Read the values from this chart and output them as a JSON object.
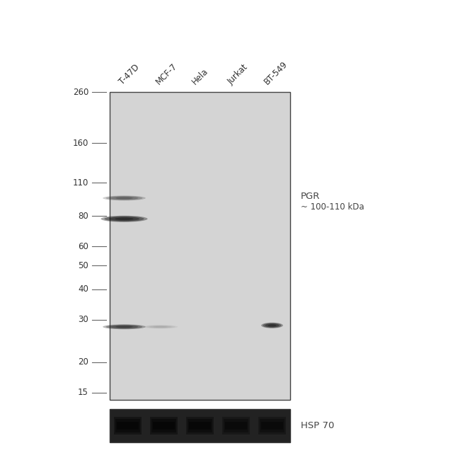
{
  "bg_color": "#ffffff",
  "gel_bg": "#d4d4d4",
  "fig_width": 6.5,
  "fig_height": 6.5,
  "lane_labels": [
    "T-47D",
    "MCF-7",
    "Hela",
    "Jurkat",
    "BT-549"
  ],
  "mw_markers": [
    260,
    160,
    110,
    80,
    60,
    50,
    40,
    30,
    20,
    15
  ],
  "pgr_text": "PGR",
  "pgr_subtext": "~ 100-110 kDa",
  "hsp_text": "HSP 70"
}
